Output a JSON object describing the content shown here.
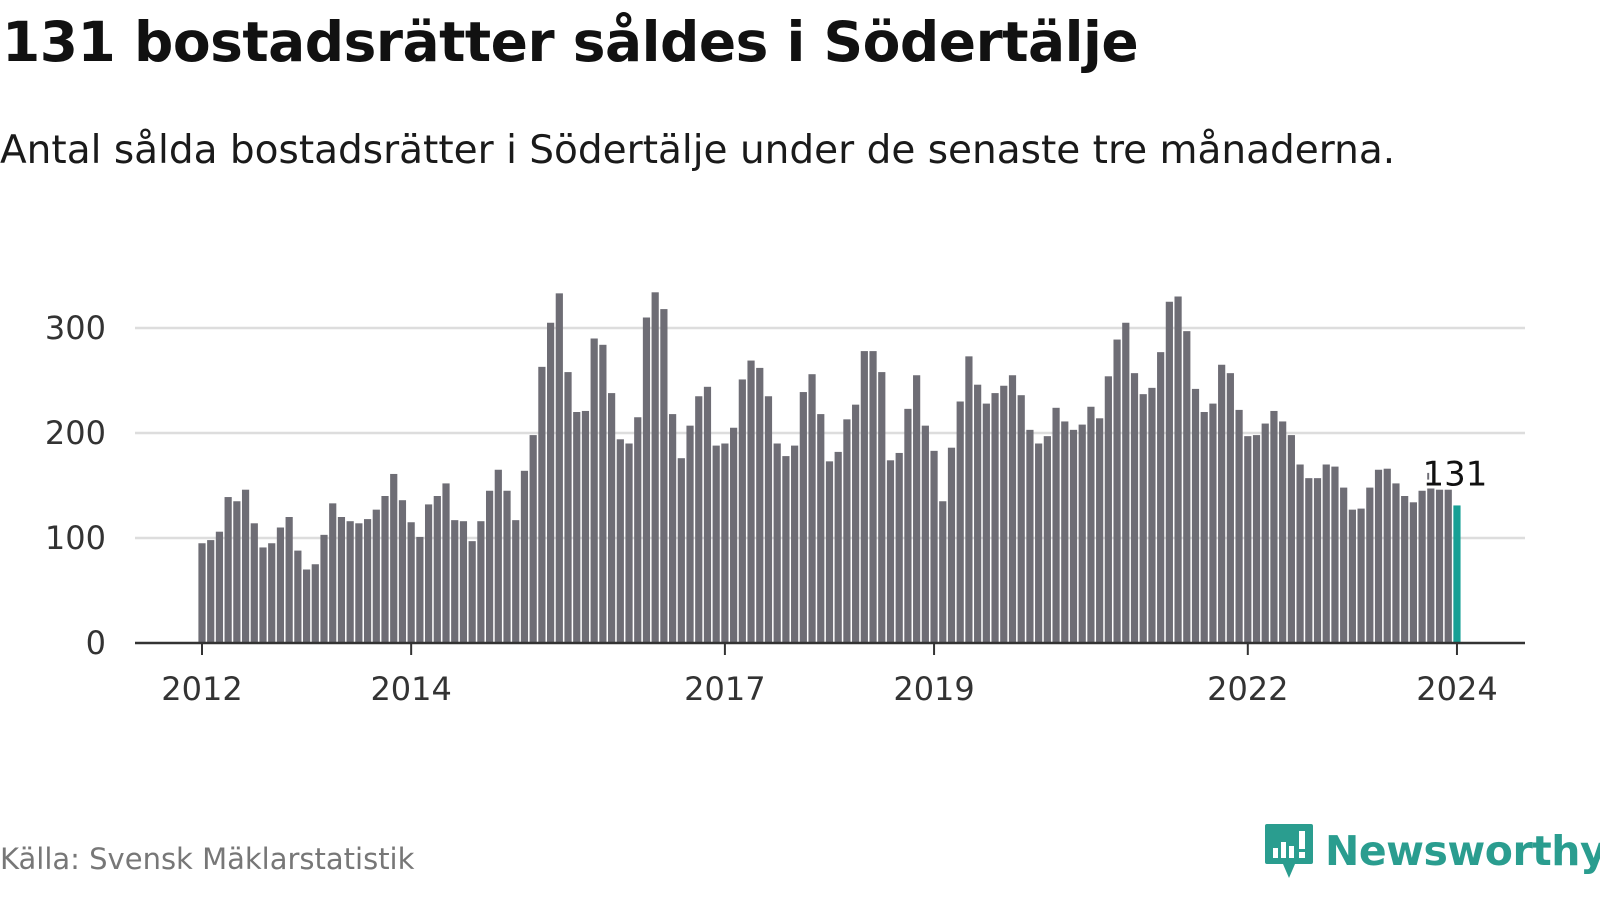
{
  "title": "131 bostadsrätter såldes i Södertälje",
  "subtitle": "Antal sålda bostadsrätter i Södertälje under de senaste tre månaderna.",
  "source": "Källa: Svensk Mäklarstatistik",
  "brand": "Newsworthy",
  "colors": {
    "bar": "#6e6d75",
    "highlight": "#17a095",
    "brand": "#2a9d8f",
    "grid": "#dddddd",
    "axis": "#333333"
  },
  "chart_data": {
    "type": "bar",
    "title": "131 bostadsrätter såldes i Södertälje",
    "xlabel": "",
    "ylabel": "",
    "start": "2012-01",
    "frequency": "monthly",
    "ylim": [
      0,
      350
    ],
    "yticks": [
      0,
      100,
      200,
      300
    ],
    "xticks": [
      {
        "label": "2012",
        "index": 0
      },
      {
        "label": "2014",
        "index": 24
      },
      {
        "label": "2017",
        "index": 60
      },
      {
        "label": "2019",
        "index": 84
      },
      {
        "label": "2022",
        "index": 120
      },
      {
        "label": "2024",
        "index": 144
      }
    ],
    "grid": true,
    "highlight_label": "131",
    "values": [
      95,
      98,
      106,
      139,
      135,
      146,
      114,
      91,
      95,
      110,
      120,
      88,
      70,
      75,
      103,
      133,
      120,
      116,
      114,
      118,
      127,
      140,
      161,
      136,
      115,
      101,
      132,
      140,
      152,
      117,
      116,
      97,
      116,
      145,
      165,
      145,
      117,
      164,
      198,
      263,
      305,
      333,
      258,
      220,
      221,
      290,
      284,
      238,
      194,
      190,
      215,
      310,
      334,
      318,
      218,
      176,
      207,
      235,
      244,
      188,
      190,
      205,
      251,
      269,
      262,
      235,
      190,
      178,
      188,
      239,
      256,
      218,
      173,
      182,
      213,
      227,
      278,
      278,
      258,
      174,
      181,
      223,
      255,
      207,
      183,
      135,
      186,
      230,
      273,
      246,
      228,
      238,
      245,
      255,
      236,
      203,
      190,
      197,
      224,
      211,
      203,
      208,
      225,
      214,
      254,
      289,
      305,
      257,
      237,
      243,
      277,
      325,
      330,
      297,
      242,
      220,
      228,
      265,
      257,
      222,
      197,
      198,
      209,
      221,
      211,
      198,
      170,
      157,
      157,
      170,
      168,
      148,
      127,
      128,
      148,
      165,
      166,
      152,
      140,
      134,
      145,
      162,
      146,
      146,
      131
    ]
  }
}
